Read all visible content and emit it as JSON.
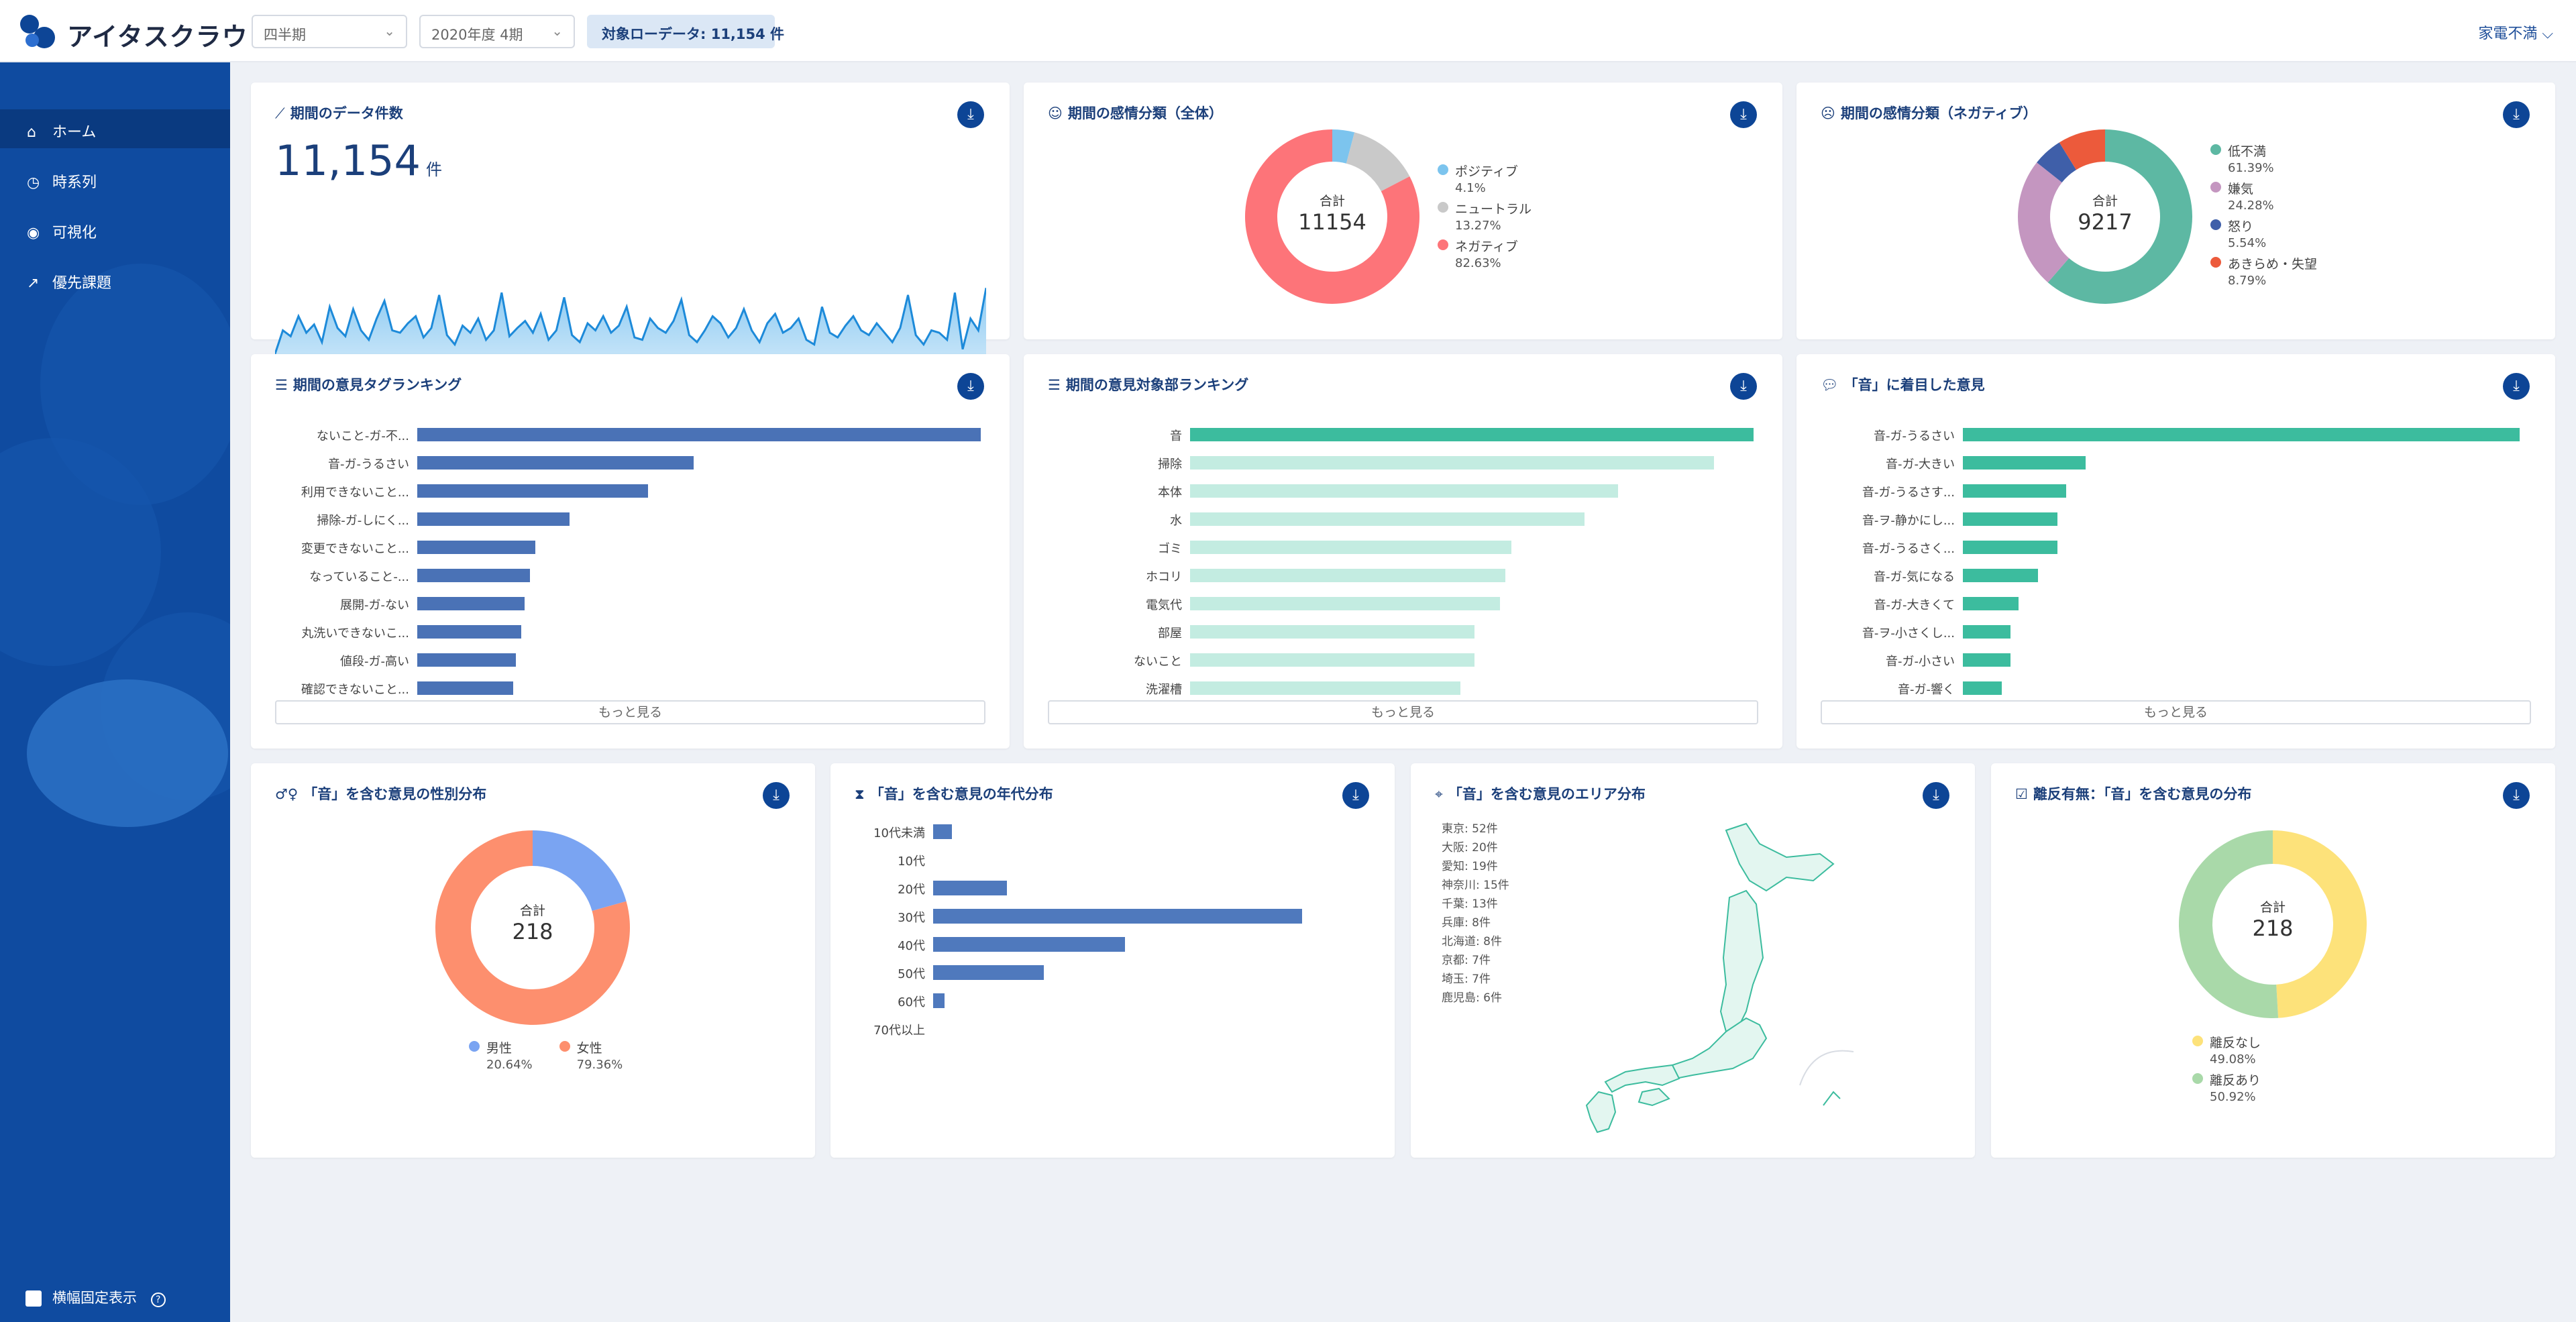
{
  "app": {
    "logo_text": "アイタスクラウド",
    "filter_period": "四半期",
    "filter_quarter": "2020年度 4期",
    "badge": "対象ローデータ: 11,154 件",
    "category": "家電不満 ⌵"
  },
  "colors": {
    "primary": "#0d4596",
    "sidebar": "#0f4ba0",
    "positive": "#7cc4ee",
    "neutral": "#c9c9c9",
    "negative": "#fd7479",
    "teal": "#3cbc9e",
    "teal_light": "#c3ece1",
    "bar_blue": "#4a72b6"
  },
  "sidebar": {
    "items": [
      {
        "label": "ホーム",
        "icon": "home-icon"
      },
      {
        "label": "時系列",
        "icon": "clock-icon"
      },
      {
        "label": "可視化",
        "icon": "eye-icon"
      },
      {
        "label": "優先課題",
        "icon": "trend-icon"
      }
    ],
    "bottom_label": "横幅固定表示"
  },
  "cards": {
    "count": {
      "title": "期間のデータ件数",
      "value": "11,154",
      "unit": "件"
    },
    "sentiment_all": {
      "title": "期間の感情分類（全体）",
      "total_label": "合計",
      "total": "11154"
    },
    "sentiment_neg": {
      "title": "期間の感情分類（ネガティブ）",
      "total_label": "合計",
      "total": "9217"
    },
    "tag_rank": {
      "title": "期間の意見タグランキング",
      "more": "もっと見る"
    },
    "target_rank": {
      "title": "期間の意見対象部ランキング",
      "more": "もっと見る"
    },
    "sound_rank": {
      "title": "「音」に着目した意見",
      "more": "もっと見る"
    },
    "gender": {
      "title": "「音」を含む意見の性別分布",
      "total_label": "合計",
      "total": "218"
    },
    "age": {
      "title": "「音」を含む意見の年代分布"
    },
    "area": {
      "title": "「音」を含む意見のエリア分布"
    },
    "leave": {
      "title": "離反有無：「音」を含む意見の分布",
      "total_label": "合計",
      "total": "218"
    }
  },
  "chart_data": [
    {
      "type": "area",
      "title": "期間のデータ件数",
      "values": [
        40,
        60,
        55,
        72,
        58,
        65,
        50,
        80,
        62,
        55,
        78,
        60,
        52,
        70,
        85,
        60,
        58,
        66,
        72,
        54,
        62,
        90,
        56,
        48,
        64,
        58,
        70,
        52,
        60,
        92,
        55,
        62,
        68,
        58,
        74,
        52,
        60,
        88,
        56,
        50,
        66,
        60,
        72,
        58,
        64,
        80,
        54,
        52,
        70,
        62,
        58,
        68,
        86,
        56,
        50,
        60,
        72,
        66,
        54,
        62,
        78,
        60,
        50,
        66,
        74,
        58,
        62,
        70,
        52,
        48,
        80,
        58,
        54,
        64,
        72,
        60,
        56,
        66,
        58,
        50,
        62,
        90,
        56,
        48,
        60,
        58,
        52,
        92,
        44,
        70,
        60,
        96
      ]
    },
    {
      "type": "pie",
      "title": "期間の感情分類（全体）",
      "slices": [
        {
          "label": "ポジティブ",
          "value": 4.1,
          "pct": "4.1%",
          "color": "#7cc4ee"
        },
        {
          "label": "ニュートラル",
          "value": 13.27,
          "pct": "13.27%",
          "color": "#c9c9c9"
        },
        {
          "label": "ネガティブ",
          "value": 82.63,
          "pct": "82.63%",
          "color": "#fd7479"
        }
      ]
    },
    {
      "type": "pie",
      "title": "期間の感情分類（ネガティブ）",
      "slices": [
        {
          "label": "低不満",
          "value": 61.39,
          "pct": "61.39%",
          "color": "#5db8a3"
        },
        {
          "label": "嫌気",
          "value": 24.28,
          "pct": "24.28%",
          "color": "#c496c0"
        },
        {
          "label": "怒り",
          "value": 5.54,
          "pct": "5.54%",
          "color": "#3f5fa9"
        },
        {
          "label": "あきらめ・失望",
          "value": 8.79,
          "pct": "8.79%",
          "color": "#ec5a3b"
        }
      ]
    },
    {
      "type": "bar",
      "title": "期間の意見タグランキング",
      "categories": [
        "ないこと-ガ-不...",
        "音-ガ-うるさい",
        "利用できないこと...",
        "掃除-ガ-しにく...",
        "変更できないこと...",
        "なっていること-...",
        "展開-ガ-ない",
        "丸洗いできないこ...",
        "値段-ガ-高い",
        "確認できないこと..."
      ],
      "values": [
        100,
        49,
        41,
        27,
        21,
        20,
        19,
        18.5,
        17.5,
        17
      ]
    },
    {
      "type": "bar",
      "title": "期間の意見対象部ランキング",
      "categories": [
        "音",
        "掃除",
        "本体",
        "水",
        "ゴミ",
        "ホコリ",
        "電気代",
        "部屋",
        "ないこと",
        "洗濯槽"
      ],
      "values": [
        100,
        93,
        76,
        70,
        57,
        56,
        55,
        50.5,
        50.5,
        48
      ]
    },
    {
      "type": "bar",
      "title": "「音」に着目した意見",
      "categories": [
        "音-ガ-うるさい",
        "音-ガ-大きい",
        "音-ガ-うるさす...",
        "音-ヲ-静かにし...",
        "音-ガ-うるさく...",
        "音-ガ-気になる",
        "音-ガ-大きくて",
        "音-ヲ-小さくし...",
        "音-ガ-小さい",
        "音-ガ-響く"
      ],
      "values": [
        100,
        22,
        18.5,
        17,
        17,
        13.5,
        10,
        8.5,
        8.5,
        7
      ]
    },
    {
      "type": "pie",
      "title": "「音」を含む意見の性別分布",
      "slices": [
        {
          "label": "男性",
          "value": 20.64,
          "pct": "20.64%",
          "color": "#7aa4f2"
        },
        {
          "label": "女性",
          "value": 79.36,
          "pct": "79.36%",
          "color": "#fd8f6e"
        }
      ]
    },
    {
      "type": "bar",
      "title": "「音」を含む意見の年代分布",
      "categories": [
        "10代未満",
        "10代",
        "20代",
        "30代",
        "40代",
        "50代",
        "60代",
        "70代以上"
      ],
      "values": [
        5,
        0,
        20,
        100,
        52,
        30,
        3,
        0
      ]
    },
    {
      "type": "table",
      "title": "「音」を含む意見のエリア分布",
      "rows": [
        "東京: 52件",
        "大阪: 20件",
        "愛知: 19件",
        "神奈川: 15件",
        "千葉: 13件",
        "兵庫: 8件",
        "北海道: 8件",
        "京都: 7件",
        "埼玉: 7件",
        "鹿児島: 6件"
      ]
    },
    {
      "type": "pie",
      "title": "離反有無：「音」を含む意見の分布",
      "slices": [
        {
          "label": "離反なし",
          "value": 49.08,
          "pct": "49.08%",
          "color": "#fde27a"
        },
        {
          "label": "離反あり",
          "value": 50.92,
          "pct": "50.92%",
          "color": "#a9d9a9"
        }
      ]
    }
  ]
}
